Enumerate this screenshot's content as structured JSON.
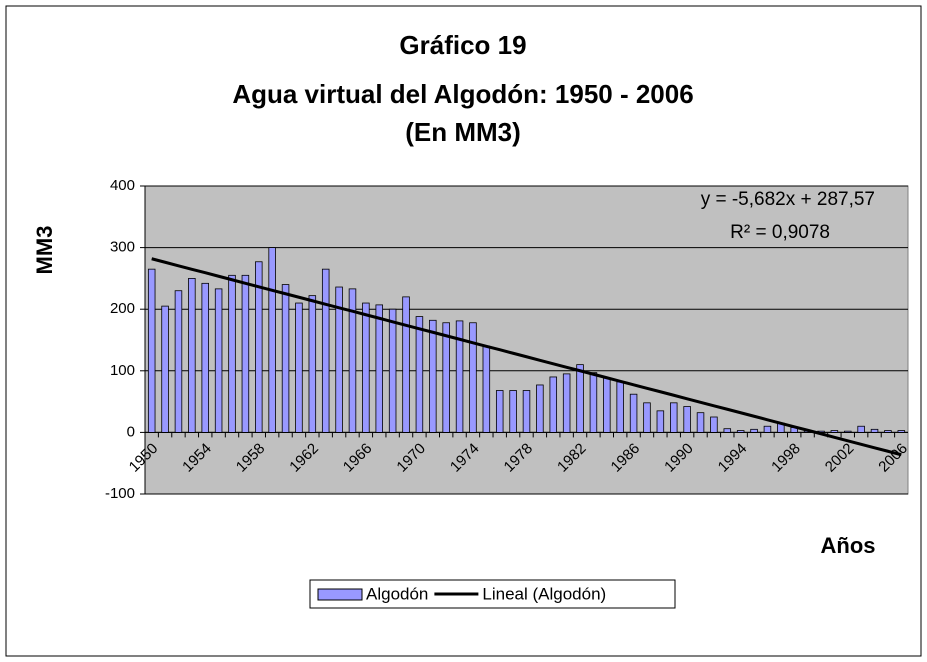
{
  "chart_data": {
    "type": "bar",
    "title": [
      "Gráfico 19",
      "Agua virtual del Algodón: 1950 - 2006",
      "(En MM3)"
    ],
    "y_label": "MM3",
    "x_label": "Años",
    "annotations": [
      "y = -5,682x + 287,57",
      "R² = 0,9078"
    ],
    "categories": [
      "1950",
      null,
      null,
      null,
      "1954",
      null,
      null,
      null,
      "1958",
      null,
      null,
      null,
      "1962",
      null,
      null,
      null,
      "1966",
      null,
      null,
      null,
      "1970",
      null,
      null,
      null,
      "1974",
      null,
      null,
      null,
      "1978",
      null,
      null,
      null,
      "1982",
      null,
      null,
      null,
      "1986",
      null,
      null,
      null,
      "1990",
      null,
      null,
      null,
      "1994",
      null,
      null,
      null,
      "1998",
      null,
      null,
      null,
      "2002",
      null,
      null,
      null,
      "2006"
    ],
    "series": [
      {
        "name": "Algodón",
        "type": "bar",
        "color": "#9999ff",
        "values": [
          265,
          205,
          230,
          250,
          242,
          233,
          255,
          255,
          277,
          300,
          240,
          210,
          222,
          265,
          236,
          233,
          210,
          207,
          200,
          220,
          188,
          182,
          178,
          181,
          178,
          140,
          68,
          68,
          68,
          77,
          90,
          95,
          110,
          97,
          88,
          82,
          62,
          48,
          35,
          48,
          42,
          32,
          25,
          6,
          3,
          5,
          10,
          15,
          8,
          2,
          2,
          3,
          2,
          10,
          5,
          3,
          3
        ]
      },
      {
        "name": "Lineal (Algodón)",
        "type": "line",
        "color": "#000000",
        "values": [
          281.9,
          276.2,
          270.5,
          264.8,
          259.2,
          253.5,
          247.8,
          242.1,
          236.4,
          230.7,
          225.1,
          219.4,
          213.7,
          208.0,
          202.3,
          196.7,
          191.0,
          185.3,
          179.6,
          173.9,
          168.2,
          162.6,
          156.9,
          151.2,
          145.5,
          139.8,
          134.2,
          128.5,
          122.8,
          117.1,
          111.4,
          105.7,
          100.1,
          94.4,
          88.7,
          83.0,
          77.3,
          71.6,
          66.0,
          60.3,
          54.6,
          48.9,
          43.2,
          37.6,
          31.9,
          26.2,
          20.5,
          14.8,
          9.1,
          3.5,
          -2.2,
          -7.9,
          -13.6,
          -19.3,
          -25.0,
          -30.6,
          -36.3
        ]
      }
    ],
    "ylim": [
      -100,
      400
    ],
    "yticks": [
      -100,
      0,
      100,
      200,
      300,
      400
    ],
    "grid": true,
    "legend": "bottom"
  }
}
